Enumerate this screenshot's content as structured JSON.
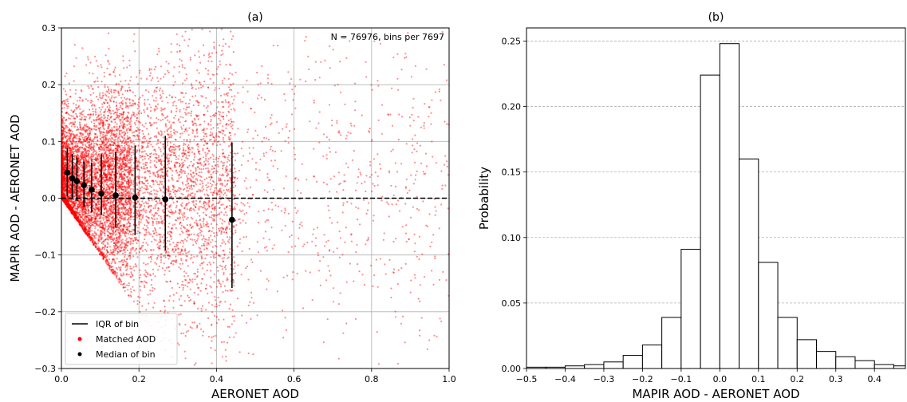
{
  "chart_data": [
    {
      "type": "scatter",
      "title": "(a)",
      "xlabel": "AERONET AOD",
      "ylabel": "MAPIR AOD - AERONET AOD",
      "xlim": [
        0.0,
        1.0
      ],
      "ylim": [
        -0.3,
        0.3
      ],
      "x_ticks": [
        "0.0",
        "0.2",
        "0.4",
        "0.6",
        "0.8",
        "1.0"
      ],
      "y_ticks": [
        "0.3",
        "0.2",
        "0.1",
        "0.0",
        "−0.1",
        "−0.2",
        "−0.3"
      ],
      "grid": true,
      "annotation": "N = 76976, bins per 7697",
      "reference_line_y": 0.0,
      "legend_position": "lower-left",
      "legend": [
        {
          "label": "IQR of bin",
          "kind": "line",
          "color": "#000000"
        },
        {
          "label": "Matched AOD",
          "kind": "dot",
          "color": "#ff0000"
        },
        {
          "label": "Median of bin",
          "kind": "dot",
          "color": "#000000"
        }
      ],
      "scatter_color": "#ff0000",
      "scatter_count_shown": 76976,
      "bins": [
        {
          "x": 0.015,
          "median": 0.045,
          "q1": 0.003,
          "q3": 0.088
        },
        {
          "x": 0.028,
          "median": 0.035,
          "q1": 0.0,
          "q3": 0.078
        },
        {
          "x": 0.04,
          "median": 0.03,
          "q1": -0.005,
          "q3": 0.072
        },
        {
          "x": 0.058,
          "median": 0.023,
          "q1": -0.015,
          "q3": 0.065
        },
        {
          "x": 0.078,
          "median": 0.015,
          "q1": -0.025,
          "q3": 0.063
        },
        {
          "x": 0.103,
          "median": 0.008,
          "q1": -0.03,
          "q3": 0.077
        },
        {
          "x": 0.14,
          "median": 0.005,
          "q1": -0.052,
          "q3": 0.082
        },
        {
          "x": 0.19,
          "median": 0.001,
          "q1": -0.065,
          "q3": 0.093
        },
        {
          "x": 0.268,
          "median": -0.002,
          "q1": -0.092,
          "q3": 0.11
        },
        {
          "x": 0.44,
          "median": -0.038,
          "q1": -0.158,
          "q3": 0.098
        }
      ]
    },
    {
      "type": "bar",
      "title": "(b)",
      "xlabel": "MAPIR AOD - AERONET AOD",
      "ylabel": "Probability",
      "xlim": [
        -0.5,
        0.48
      ],
      "ylim": [
        0.0,
        0.26
      ],
      "x_ticks": [
        "−0.5",
        "−0.4",
        "−0.3",
        "−0.2",
        "−0.1",
        "0.0",
        "0.1",
        "0.2",
        "0.3",
        "0.4"
      ],
      "y_ticks": [
        "0.25",
        "0.20",
        "0.15",
        "0.10",
        "0.05",
        "0.00"
      ],
      "grid": "horizontal-dashed",
      "bin_width": 0.05,
      "bin_edges_start": -0.5,
      "values": [
        0.001,
        0.001,
        0.002,
        0.003,
        0.005,
        0.01,
        0.018,
        0.039,
        0.091,
        0.224,
        0.248,
        0.16,
        0.081,
        0.039,
        0.022,
        0.013,
        0.009,
        0.006,
        0.003,
        0.002
      ]
    }
  ]
}
